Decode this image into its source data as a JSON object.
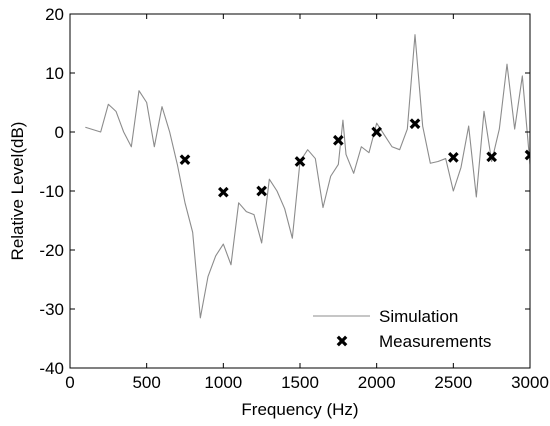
{
  "chart_data": {
    "type": "line",
    "title": "",
    "xlabel": "Frequency (Hz)",
    "ylabel": "Relative Level(dB)",
    "xlim": [
      0,
      3000
    ],
    "ylim": [
      -40,
      20
    ],
    "xticks": [
      0,
      500,
      1000,
      1500,
      2000,
      2500,
      3000
    ],
    "xtick_labels": [
      "0",
      "500",
      "1000",
      "1500",
      "2000",
      "2500",
      "3000"
    ],
    "yticks": [
      -40,
      -30,
      -20,
      -10,
      0,
      10,
      20
    ],
    "ytick_labels": [
      "-40",
      "-30",
      "-20",
      "-10",
      "0",
      "10",
      "20"
    ],
    "grid": false,
    "legend_position": "bottom-right",
    "series": [
      {
        "name": "Simulation",
        "style": "line",
        "color": "#8c8c8c",
        "x": [
          100,
          200,
          250,
          300,
          350,
          400,
          450,
          500,
          550,
          600,
          650,
          700,
          750,
          800,
          850,
          900,
          950,
          1000,
          1050,
          1100,
          1150,
          1200,
          1250,
          1300,
          1350,
          1400,
          1450,
          1500,
          1550,
          1600,
          1650,
          1700,
          1750,
          1780,
          1800,
          1850,
          1900,
          1950,
          2000,
          2050,
          2100,
          2150,
          2200,
          2250,
          2300,
          2350,
          2400,
          2450,
          2500,
          2550,
          2600,
          2650,
          2700,
          2750,
          2800,
          2850,
          2900,
          2950,
          3000
        ],
        "y": [
          0.8,
          0,
          4.7,
          3.5,
          0,
          -2.5,
          7,
          5,
          -2.5,
          4.3,
          0,
          -5.5,
          -12,
          -17,
          -31.5,
          -24.5,
          -21,
          -19,
          -22.5,
          -12,
          -13.5,
          -14,
          -18.8,
          -8,
          -10,
          -13,
          -18,
          -5,
          -3,
          -4.5,
          -12.8,
          -7.5,
          -5.5,
          2,
          -3.8,
          -7,
          -2.5,
          -3.5,
          1.5,
          -0.5,
          -2.5,
          -3,
          0.5,
          16.5,
          1,
          -5.3,
          -5,
          -4.5,
          -10,
          -6,
          1,
          -11,
          3.5,
          -5,
          0.5,
          11.5,
          0.5,
          9.5,
          -5.5
        ]
      },
      {
        "name": "Measurements",
        "style": "markers",
        "marker": "x",
        "color": "#000000",
        "x": [
          750,
          1000,
          1250,
          1500,
          1750,
          2000,
          2250,
          2500,
          2750,
          3000
        ],
        "y": [
          -4.7,
          -10.2,
          -10,
          -5,
          -1.4,
          0,
          1.4,
          -4.3,
          -4.2,
          -3.9
        ]
      }
    ]
  },
  "colors": {
    "axes": "#000000",
    "background": "#ffffff"
  }
}
